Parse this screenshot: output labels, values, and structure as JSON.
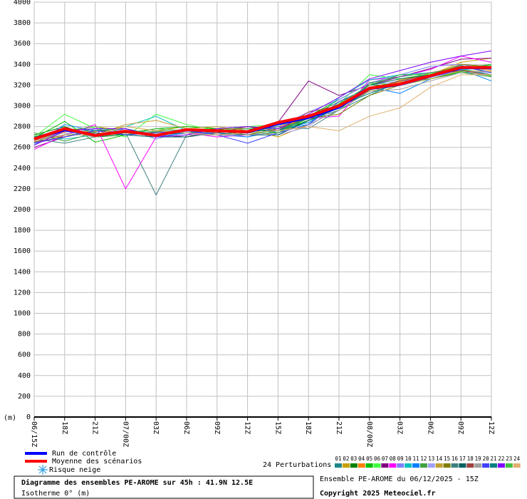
{
  "chart_data": {
    "type": "line",
    "title": "Diagramme des ensembles PE-AROME sur 45h : 41.9N 12.5E",
    "subtitle": "Isotherme 0° (m)",
    "y_label": "(m)",
    "run_label": "Ensemble PE-AROME du 06/12/2025 - 15Z",
    "copyright": "Copyright 2025 Meteociel.fr",
    "perturbations_label": "24 Perturbations",
    "snow_risk_label": "Risque neige",
    "categories": [
      "06/15Z",
      "18Z",
      "21Z",
      "07/00Z",
      "03Z",
      "06Z",
      "09Z",
      "12Z",
      "15Z",
      "18Z",
      "21Z",
      "08/00Z",
      "03Z",
      "06Z",
      "09Z",
      "12Z"
    ],
    "ylim": [
      0,
      4000
    ],
    "yticks": [
      0,
      200,
      400,
      600,
      800,
      1000,
      1200,
      1400,
      1600,
      1800,
      2000,
      2200,
      2400,
      2600,
      2800,
      3000,
      3200,
      3400,
      3600,
      3800,
      4000
    ],
    "grid": true,
    "series": [
      {
        "name": "Run de contrôle",
        "color": "#0000ff",
        "line_width": 2,
        "values": [
          2680,
          2760,
          2720,
          2760,
          2720,
          2760,
          2760,
          2740,
          2820,
          2880,
          2980,
          3160,
          3200,
          3280,
          3360,
          3360
        ]
      },
      {
        "name": "Moyenne des scénarios",
        "color": "#ff0000",
        "line_width": 4,
        "values": [
          2680,
          2780,
          2715,
          2755,
          2715,
          2770,
          2760,
          2750,
          2840,
          2900,
          3000,
          3170,
          3210,
          3290,
          3370,
          3370
        ]
      }
    ],
    "perturbations": [
      {
        "name": "01",
        "color": "#208888",
        "values": [
          2650,
          2700,
          2780,
          2720,
          2700,
          2740,
          2720,
          2760,
          2760,
          2860,
          2960,
          3100,
          3240,
          3300,
          3390,
          3320
        ]
      },
      {
        "name": "02",
        "color": "#c8a000",
        "values": [
          2700,
          2760,
          2750,
          2800,
          2760,
          2800,
          2780,
          2780,
          2700,
          2820,
          2960,
          3150,
          3250,
          3300,
          3420,
          3460
        ]
      },
      {
        "name": "03",
        "color": "#008000",
        "values": [
          2720,
          2800,
          2700,
          2720,
          2750,
          2760,
          2780,
          2800,
          2740,
          2860,
          2980,
          3200,
          3200,
          3280,
          3350,
          3300
        ]
      },
      {
        "name": "04",
        "color": "#ff8000",
        "values": [
          2660,
          2750,
          2800,
          2760,
          2720,
          2740,
          2770,
          2760,
          2800,
          2880,
          3020,
          3180,
          3230,
          3320,
          3380,
          3340
        ]
      },
      {
        "name": "05",
        "color": "#00c000",
        "values": [
          2690,
          2850,
          2650,
          2720,
          2780,
          2800,
          2780,
          2740,
          2760,
          2900,
          3060,
          3220,
          3200,
          3260,
          3330,
          3290
        ]
      },
      {
        "name": "06",
        "color": "#40ff40",
        "values": [
          2700,
          2920,
          2780,
          2700,
          2920,
          2820,
          2760,
          2800,
          2820,
          2840,
          3020,
          3300,
          3260,
          3310,
          3380,
          3390
        ]
      },
      {
        "name": "07",
        "color": "#800080",
        "values": [
          2600,
          2700,
          2760,
          2740,
          2720,
          2700,
          2760,
          2760,
          2840,
          3240,
          3100,
          3200,
          3280,
          3360,
          3450,
          3460
        ]
      },
      {
        "name": "08",
        "color": "#ff00ff",
        "values": [
          2580,
          2720,
          2820,
          2200,
          2700,
          2740,
          2700,
          2720,
          2780,
          2880,
          2900,
          3250,
          3280,
          3350,
          3480,
          3420
        ]
      },
      {
        "name": "09",
        "color": "#8080ff",
        "values": [
          2640,
          2760,
          2720,
          2780,
          2680,
          2760,
          2720,
          2700,
          2800,
          2940,
          3060,
          3220,
          3300,
          3380,
          3400,
          3350
        ]
      },
      {
        "name": "10",
        "color": "#00c0c0",
        "values": [
          2700,
          2680,
          2720,
          2800,
          2900,
          2760,
          2760,
          2780,
          2780,
          2820,
          3080,
          3250,
          3300,
          3320,
          3360,
          3300
        ]
      },
      {
        "name": "11",
        "color": "#0080ff",
        "values": [
          2620,
          2820,
          2760,
          2780,
          2700,
          2740,
          2740,
          2700,
          2760,
          2840,
          3000,
          3180,
          3120,
          3260,
          3350,
          3240
        ]
      },
      {
        "name": "12",
        "color": "#40a040",
        "values": [
          2740,
          2660,
          2740,
          2720,
          2760,
          2760,
          2760,
          2780,
          2740,
          2900,
          3040,
          3160,
          3240,
          3260,
          3320,
          3280
        ]
      },
      {
        "name": "13",
        "color": "#a0a0ff",
        "values": [
          2680,
          2720,
          2780,
          2760,
          2740,
          2780,
          2740,
          2760,
          2720,
          2800,
          3000,
          3200,
          3240,
          3280,
          3340,
          3320
        ]
      },
      {
        "name": "14",
        "color": "#c0a030",
        "values": [
          2660,
          2720,
          2720,
          2820,
          2860,
          2780,
          2800,
          2760,
          2820,
          2880,
          3000,
          3140,
          3200,
          3260,
          3340,
          3330
        ]
      },
      {
        "name": "15",
        "color": "#808000",
        "values": [
          2700,
          2700,
          2760,
          2740,
          2740,
          2760,
          2760,
          2720,
          2780,
          2880,
          2920,
          3100,
          3200,
          3300,
          3400,
          3380
        ]
      },
      {
        "name": "16",
        "color": "#408080",
        "values": [
          2680,
          2640,
          2700,
          2740,
          2140,
          2720,
          2720,
          2760,
          2800,
          2780,
          2960,
          3220,
          3280,
          3320,
          3360,
          3360
        ]
      },
      {
        "name": "17",
        "color": "#006060",
        "values": [
          2660,
          2760,
          2740,
          2720,
          2700,
          2700,
          2740,
          2720,
          2720,
          2860,
          2980,
          3200,
          3260,
          3300,
          3360,
          3400
        ]
      },
      {
        "name": "18",
        "color": "#a04040",
        "values": [
          2650,
          2700,
          2760,
          2740,
          2720,
          2760,
          2740,
          2800,
          2760,
          2940,
          3000,
          3160,
          3240,
          3300,
          3340,
          3300
        ]
      },
      {
        "name": "19",
        "color": "#a0a0a0",
        "values": [
          2660,
          2740,
          2700,
          2760,
          2700,
          2720,
          2720,
          2720,
          2740,
          2820,
          2960,
          3140,
          3160,
          3240,
          3320,
          3300
        ]
      },
      {
        "name": "20",
        "color": "#4040ff",
        "values": [
          2640,
          2700,
          2760,
          2720,
          2740,
          2760,
          2720,
          2640,
          2740,
          2820,
          3040,
          3180,
          3200,
          3280,
          3380,
          3320
        ]
      },
      {
        "name": "21",
        "color": "#008080",
        "values": [
          2700,
          2780,
          2760,
          2780,
          2720,
          2740,
          2760,
          2760,
          2760,
          2880,
          3000,
          3120,
          3220,
          3300,
          3380,
          3380
        ]
      },
      {
        "name": "22",
        "color": "#8000ff",
        "values": [
          2620,
          2760,
          2780,
          2780,
          2700,
          2720,
          2780,
          2800,
          2780,
          2920,
          3080,
          3260,
          3340,
          3420,
          3480,
          3530
        ]
      },
      {
        "name": "23",
        "color": "#40c040",
        "values": [
          2680,
          2760,
          2800,
          2740,
          2780,
          2760,
          2760,
          2740,
          2740,
          2880,
          3020,
          3200,
          3300,
          3300,
          3360,
          3400
        ]
      },
      {
        "name": "24",
        "color": "#e0b070",
        "values": [
          2660,
          2760,
          2720,
          2800,
          2760,
          2740,
          2720,
          2740,
          2760,
          2800,
          2760,
          2900,
          2980,
          3180,
          3300,
          3300
        ]
      }
    ]
  }
}
